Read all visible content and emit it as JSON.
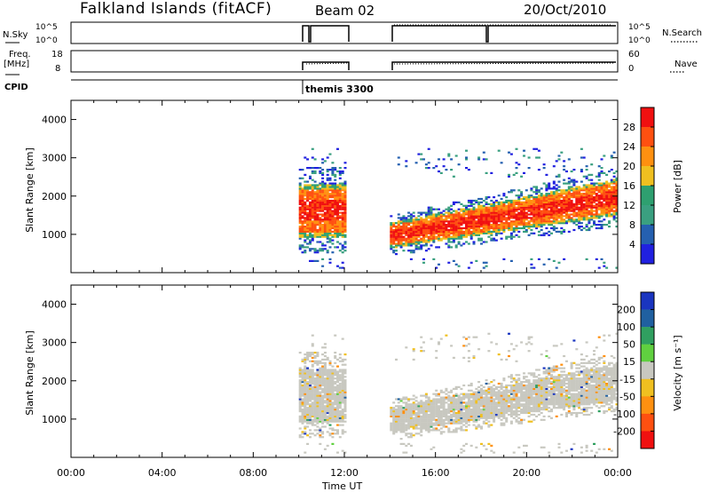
{
  "header": {
    "station": "Falkland Islands (fitACF)",
    "beam": "Beam 02",
    "date": "20/Oct/2010"
  },
  "labels": {
    "nsky": "N.Sky",
    "freq": "Freq.",
    "mhz": "[MHz]",
    "cpid": "CPID",
    "nsearch": "N.Search",
    "nave": "Nave",
    "cpid_value": "themis 3300"
  },
  "params": {
    "nsky_ticks": [
      "10^5",
      "10^0"
    ],
    "nsearch_ticks": [
      "10^5",
      "10^0"
    ],
    "freq_ticks": [
      "18",
      "8"
    ],
    "nave_ticks": [
      "60",
      "0"
    ]
  },
  "chart_data": [
    {
      "type": "heatmap",
      "ylabel": "Slant Range [km]",
      "yticks": [
        "1000",
        "2000",
        "3000",
        "4000"
      ],
      "colorbar": {
        "label": "Power [dB]",
        "ticks": [
          "28",
          "24",
          "20",
          "16",
          "12",
          "8",
          "4"
        ],
        "colors": [
          "#f01010",
          "#ff5010",
          "#ff9010",
          "#f0c020",
          "#2ea070",
          "#3aa080",
          "#2560b0",
          "#2020e0"
        ]
      },
      "ylim": [
        0,
        4500
      ]
    },
    {
      "type": "heatmap",
      "xlabel": "Time UT",
      "ylabel": "Slant Range [km]",
      "yticks": [
        "1000",
        "2000",
        "3000",
        "4000"
      ],
      "xticks": [
        "00:00",
        "04:00",
        "08:00",
        "12:00",
        "16:00",
        "20:00",
        "00:00"
      ],
      "colorbar": {
        "label": "Velocity [m s⁻¹]",
        "ticks": [
          "200",
          "100",
          "50",
          "15",
          "-15",
          "-50",
          "-100",
          "-200"
        ],
        "colors": [
          "#1a35c0",
          "#2060a0",
          "#30a060",
          "#60d040",
          "#c8c8c0",
          "#f0c020",
          "#ff9010",
          "#ff5010",
          "#f01010"
        ]
      },
      "ylim": [
        0,
        4500
      ]
    }
  ]
}
